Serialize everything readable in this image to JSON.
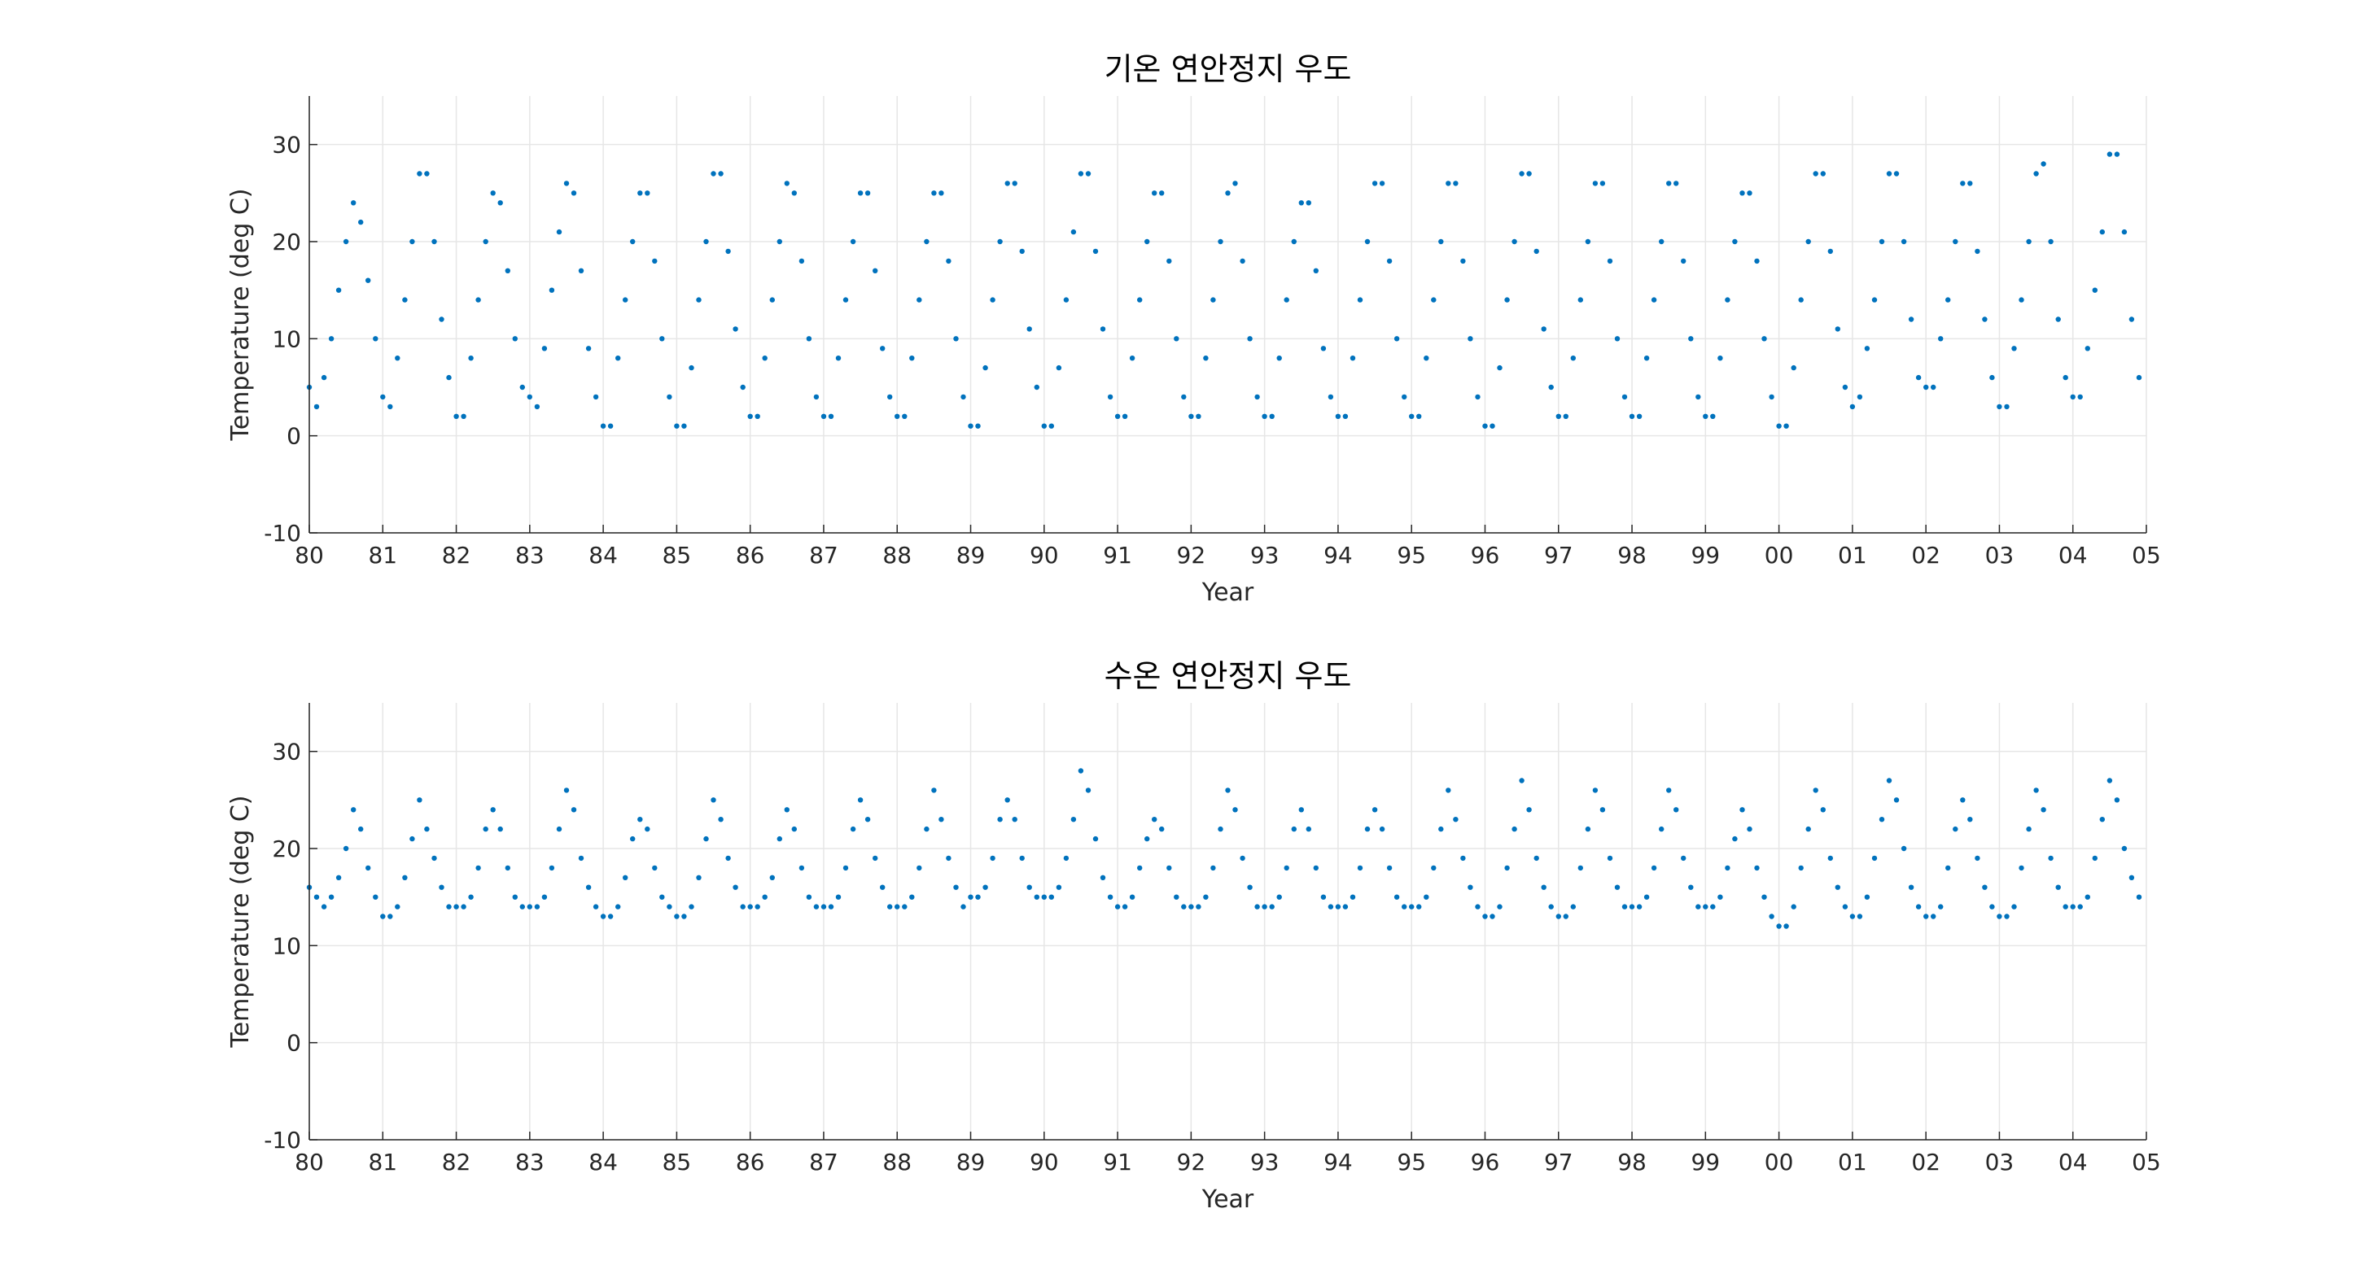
{
  "chart_data": [
    {
      "type": "scatter",
      "title": "기온 연안정지 우도",
      "xlabel": "Year",
      "ylabel": "Temperature (deg C)",
      "xlim": [
        1980,
        2005
      ],
      "ylim": [
        -10,
        35
      ],
      "yticks": [
        -10,
        0,
        10,
        20,
        30
      ],
      "xtick_labels": [
        "80",
        "81",
        "82",
        "83",
        "84",
        "85",
        "86",
        "87",
        "88",
        "89",
        "90",
        "91",
        "92",
        "93",
        "94",
        "95",
        "96",
        "97",
        "98",
        "99",
        "00",
        "01",
        "02",
        "03",
        "04",
        "05"
      ],
      "grid": true,
      "color": "#0072BD",
      "series": [
        {
          "x": [
            1980.0,
            1980.1,
            1980.2,
            1980.3,
            1980.4,
            1980.5,
            1980.6,
            1980.7,
            1980.8,
            1980.9,
            1981.0,
            1981.1,
            1981.2,
            1981.3,
            1981.4,
            1981.5,
            1981.6,
            1981.7,
            1981.8,
            1981.9,
            1982.0,
            1982.1,
            1982.2,
            1982.3,
            1982.4,
            1982.5,
            1982.6,
            1982.7,
            1982.8,
            1982.9,
            1983.0,
            1983.1,
            1983.2,
            1983.3,
            1983.4,
            1983.5,
            1983.6,
            1983.7,
            1983.8,
            1983.9,
            1984.0,
            1984.1,
            1984.2,
            1984.3,
            1984.4,
            1984.5,
            1984.6,
            1984.7,
            1984.8,
            1984.9,
            1985.0,
            1985.1,
            1985.2,
            1985.3,
            1985.4,
            1985.5,
            1985.6,
            1985.7,
            1985.8,
            1985.9,
            1986.0,
            1986.1,
            1986.2,
            1986.3,
            1986.4,
            1986.5,
            1986.6,
            1986.7,
            1986.8,
            1986.9,
            1987.0,
            1987.1,
            1987.2,
            1987.3,
            1987.4,
            1987.5,
            1987.6,
            1987.7,
            1987.8,
            1987.9,
            1988.0,
            1988.1,
            1988.2,
            1988.3,
            1988.4,
            1988.5,
            1988.6,
            1988.7,
            1988.8,
            1988.9,
            1989.0,
            1989.1,
            1989.2,
            1989.3,
            1989.4,
            1989.5,
            1989.6,
            1989.7,
            1989.8,
            1989.9,
            1990.0,
            1990.1,
            1990.2,
            1990.3,
            1990.4,
            1990.5,
            1990.6,
            1990.7,
            1990.8,
            1990.9,
            1991.0,
            1991.1,
            1991.2,
            1991.3,
            1991.4,
            1991.5,
            1991.6,
            1991.7,
            1991.8,
            1991.9,
            1992.0,
            1992.1,
            1992.2,
            1992.3,
            1992.4,
            1992.5,
            1992.6,
            1992.7,
            1992.8,
            1992.9,
            1993.0,
            1993.1,
            1993.2,
            1993.3,
            1993.4,
            1993.5,
            1993.6,
            1993.7,
            1993.8,
            1993.9,
            1994.0,
            1994.1,
            1994.2,
            1994.3,
            1994.4,
            1994.5,
            1994.6,
            1994.7,
            1994.8,
            1994.9,
            1995.0,
            1995.1,
            1995.2,
            1995.3,
            1995.4,
            1995.5,
            1995.6,
            1995.7,
            1995.8,
            1995.9,
            1996.0,
            1996.1,
            1996.2,
            1996.3,
            1996.4,
            1996.5,
            1996.6,
            1996.7,
            1996.8,
            1996.9,
            1997.0,
            1997.1,
            1997.2,
            1997.3,
            1997.4,
            1997.5,
            1997.6,
            1997.7,
            1997.8,
            1997.9,
            1998.0,
            1998.1,
            1998.2,
            1998.3,
            1998.4,
            1998.5,
            1998.6,
            1998.7,
            1998.8,
            1998.9,
            1999.0,
            1999.1,
            1999.2,
            1999.3,
            1999.4,
            1999.5,
            1999.6,
            1999.7,
            1999.8,
            1999.9,
            2000.0,
            2000.1,
            2000.2,
            2000.3,
            2000.4,
            2000.5,
            2000.6,
            2000.7,
            2000.8,
            2000.9,
            2001.0,
            2001.1,
            2001.2,
            2001.3,
            2001.4,
            2001.5,
            2001.6,
            2001.7,
            2001.8,
            2001.9,
            2002.0,
            2002.1,
            2002.2,
            2002.3,
            2002.4,
            2002.5,
            2002.6,
            2002.7,
            2002.8,
            2002.9,
            2003.0,
            2003.1,
            2003.2,
            2003.3,
            2003.4,
            2003.5,
            2003.6,
            2003.7,
            2003.8,
            2003.9,
            2004.0,
            2004.1,
            2004.2,
            2004.3,
            2004.4,
            2004.5,
            2004.6,
            2004.7,
            2004.8,
            2004.9
          ],
          "y": [
            5,
            3,
            6,
            10,
            15,
            20,
            24,
            22,
            16,
            10,
            4,
            3,
            8,
            14,
            20,
            27,
            27,
            20,
            12,
            6,
            2,
            2,
            8,
            14,
            20,
            25,
            24,
            17,
            10,
            5,
            4,
            3,
            9,
            15,
            21,
            26,
            25,
            17,
            9,
            4,
            1,
            1,
            8,
            14,
            20,
            25,
            25,
            18,
            10,
            4,
            1,
            1,
            7,
            14,
            20,
            27,
            27,
            19,
            11,
            5,
            2,
            2,
            8,
            14,
            20,
            26,
            25,
            18,
            10,
            4,
            2,
            2,
            8,
            14,
            20,
            25,
            25,
            17,
            9,
            4,
            2,
            2,
            8,
            14,
            20,
            25,
            25,
            18,
            10,
            4,
            1,
            1,
            7,
            14,
            20,
            26,
            26,
            19,
            11,
            5,
            1,
            1,
            7,
            14,
            21,
            27,
            27,
            19,
            11,
            4,
            2,
            2,
            8,
            14,
            20,
            25,
            25,
            18,
            10,
            4,
            2,
            2,
            8,
            14,
            20,
            25,
            26,
            18,
            10,
            4,
            2,
            2,
            8,
            14,
            20,
            24,
            24,
            17,
            9,
            4,
            2,
            2,
            8,
            14,
            20,
            26,
            26,
            18,
            10,
            4,
            2,
            2,
            8,
            14,
            20,
            26,
            26,
            18,
            10,
            4,
            1,
            1,
            7,
            14,
            20,
            27,
            27,
            19,
            11,
            5,
            2,
            2,
            8,
            14,
            20,
            26,
            26,
            18,
            10,
            4,
            2,
            2,
            8,
            14,
            20,
            26,
            26,
            18,
            10,
            4,
            2,
            2,
            8,
            14,
            20,
            25,
            25,
            18,
            10,
            4,
            1,
            1,
            7,
            14,
            20,
            27,
            27,
            19,
            11,
            5,
            3,
            4,
            9,
            14,
            20,
            27,
            27,
            20,
            12,
            6,
            5,
            5,
            10,
            14,
            20,
            26,
            26,
            19,
            12,
            6,
            3,
            3,
            9,
            14,
            20,
            27,
            28,
            20,
            12,
            6,
            4,
            4,
            9,
            15,
            21,
            29,
            29,
            21,
            12,
            6
          ]
        }
      ]
    },
    {
      "type": "scatter",
      "title": "수온 연안정지 우도",
      "xlabel": "Year",
      "ylabel": "Temperature (deg C)",
      "xlim": [
        1980,
        2005
      ],
      "ylim": [
        -10,
        35
      ],
      "yticks": [
        -10,
        0,
        10,
        20,
        30
      ],
      "xtick_labels": [
        "80",
        "81",
        "82",
        "83",
        "84",
        "85",
        "86",
        "87",
        "88",
        "89",
        "90",
        "91",
        "92",
        "93",
        "94",
        "95",
        "96",
        "97",
        "98",
        "99",
        "00",
        "01",
        "02",
        "03",
        "04",
        "05"
      ],
      "grid": true,
      "color": "#0072BD",
      "series": [
        {
          "x": [
            1980.0,
            1980.1,
            1980.2,
            1980.3,
            1980.4,
            1980.5,
            1980.6,
            1980.7,
            1980.8,
            1980.9,
            1981.0,
            1981.1,
            1981.2,
            1981.3,
            1981.4,
            1981.5,
            1981.6,
            1981.7,
            1981.8,
            1981.9,
            1982.0,
            1982.1,
            1982.2,
            1982.3,
            1982.4,
            1982.5,
            1982.6,
            1982.7,
            1982.8,
            1982.9,
            1983.0,
            1983.1,
            1983.2,
            1983.3,
            1983.4,
            1983.5,
            1983.6,
            1983.7,
            1983.8,
            1983.9,
            1984.0,
            1984.1,
            1984.2,
            1984.3,
            1984.4,
            1984.5,
            1984.6,
            1984.7,
            1984.8,
            1984.9,
            1985.0,
            1985.1,
            1985.2,
            1985.3,
            1985.4,
            1985.5,
            1985.6,
            1985.7,
            1985.8,
            1985.9,
            1986.0,
            1986.1,
            1986.2,
            1986.3,
            1986.4,
            1986.5,
            1986.6,
            1986.7,
            1986.8,
            1986.9,
            1987.0,
            1987.1,
            1987.2,
            1987.3,
            1987.4,
            1987.5,
            1987.6,
            1987.7,
            1987.8,
            1987.9,
            1988.0,
            1988.1,
            1988.2,
            1988.3,
            1988.4,
            1988.5,
            1988.6,
            1988.7,
            1988.8,
            1988.9,
            1989.0,
            1989.1,
            1989.2,
            1989.3,
            1989.4,
            1989.5,
            1989.6,
            1989.7,
            1989.8,
            1989.9,
            1990.0,
            1990.1,
            1990.2,
            1990.3,
            1990.4,
            1990.5,
            1990.6,
            1990.7,
            1990.8,
            1990.9,
            1991.0,
            1991.1,
            1991.2,
            1991.3,
            1991.4,
            1991.5,
            1991.6,
            1991.7,
            1991.8,
            1991.9,
            1992.0,
            1992.1,
            1992.2,
            1992.3,
            1992.4,
            1992.5,
            1992.6,
            1992.7,
            1992.8,
            1992.9,
            1993.0,
            1993.1,
            1993.2,
            1993.3,
            1993.4,
            1993.5,
            1993.6,
            1993.7,
            1993.8,
            1993.9,
            1994.0,
            1994.1,
            1994.2,
            1994.3,
            1994.4,
            1994.5,
            1994.6,
            1994.7,
            1994.8,
            1994.9,
            1995.0,
            1995.1,
            1995.2,
            1995.3,
            1995.4,
            1995.5,
            1995.6,
            1995.7,
            1995.8,
            1995.9,
            1996.0,
            1996.1,
            1996.2,
            1996.3,
            1996.4,
            1996.5,
            1996.6,
            1996.7,
            1996.8,
            1996.9,
            1997.0,
            1997.1,
            1997.2,
            1997.3,
            1997.4,
            1997.5,
            1997.6,
            1997.7,
            1997.8,
            1997.9,
            1998.0,
            1998.1,
            1998.2,
            1998.3,
            1998.4,
            1998.5,
            1998.6,
            1998.7,
            1998.8,
            1998.9,
            1999.0,
            1999.1,
            1999.2,
            1999.3,
            1999.4,
            1999.5,
            1999.6,
            1999.7,
            1999.8,
            1999.9,
            2000.0,
            2000.1,
            2000.2,
            2000.3,
            2000.4,
            2000.5,
            2000.6,
            2000.7,
            2000.8,
            2000.9,
            2001.0,
            2001.1,
            2001.2,
            2001.3,
            2001.4,
            2001.5,
            2001.6,
            2001.7,
            2001.8,
            2001.9,
            2002.0,
            2002.1,
            2002.2,
            2002.3,
            2002.4,
            2002.5,
            2002.6,
            2002.7,
            2002.8,
            2002.9,
            2003.0,
            2003.1,
            2003.2,
            2003.3,
            2003.4,
            2003.5,
            2003.6,
            2003.7,
            2003.8,
            2003.9,
            2004.0,
            2004.1,
            2004.2,
            2004.3,
            2004.4,
            2004.5,
            2004.6,
            2004.7,
            2004.8,
            2004.9
          ],
          "y": [
            16,
            15,
            14,
            15,
            17,
            20,
            24,
            22,
            18,
            15,
            13,
            13,
            14,
            17,
            21,
            25,
            22,
            19,
            16,
            14,
            14,
            14,
            15,
            18,
            22,
            24,
            22,
            18,
            15,
            14,
            14,
            14,
            15,
            18,
            22,
            26,
            24,
            19,
            16,
            14,
            13,
            13,
            14,
            17,
            21,
            23,
            22,
            18,
            15,
            14,
            13,
            13,
            14,
            17,
            21,
            25,
            23,
            19,
            16,
            14,
            14,
            14,
            15,
            17,
            21,
            24,
            22,
            18,
            15,
            14,
            14,
            14,
            15,
            18,
            22,
            25,
            23,
            19,
            16,
            14,
            14,
            14,
            15,
            18,
            22,
            26,
            23,
            19,
            16,
            14,
            15,
            15,
            16,
            19,
            23,
            25,
            23,
            19,
            16,
            15,
            15,
            15,
            16,
            19,
            23,
            28,
            26,
            21,
            17,
            15,
            14,
            14,
            15,
            18,
            21,
            23,
            22,
            18,
            15,
            14,
            14,
            14,
            15,
            18,
            22,
            26,
            24,
            19,
            16,
            14,
            14,
            14,
            15,
            18,
            22,
            24,
            22,
            18,
            15,
            14,
            14,
            14,
            15,
            18,
            22,
            24,
            22,
            18,
            15,
            14,
            14,
            14,
            15,
            18,
            22,
            26,
            23,
            19,
            16,
            14,
            13,
            13,
            14,
            18,
            22,
            27,
            24,
            19,
            16,
            14,
            13,
            13,
            14,
            18,
            22,
            26,
            24,
            19,
            16,
            14,
            14,
            14,
            15,
            18,
            22,
            26,
            24,
            19,
            16,
            14,
            14,
            14,
            15,
            18,
            21,
            24,
            22,
            18,
            15,
            13,
            12,
            12,
            14,
            18,
            22,
            26,
            24,
            19,
            16,
            14,
            13,
            13,
            15,
            19,
            23,
            27,
            25,
            20,
            16,
            14,
            13,
            13,
            14,
            18,
            22,
            25,
            23,
            19,
            16,
            14,
            13,
            13,
            14,
            18,
            22,
            26,
            24,
            19,
            16,
            14,
            14,
            14,
            15,
            19,
            23,
            27,
            25,
            20,
            17,
            15
          ]
        }
      ]
    }
  ]
}
